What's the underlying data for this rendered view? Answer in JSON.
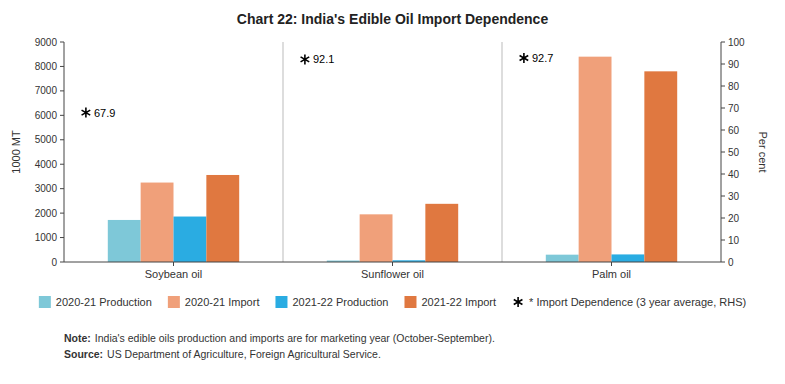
{
  "chart_data": {
    "type": "bar",
    "title": "Chart 22: India's Edible Oil Import Dependence",
    "categories": [
      "Soybean oil",
      "Sunflower oil",
      "Palm oil"
    ],
    "series": [
      {
        "name": "2020-21 Production",
        "color": "#7EC8D8",
        "values": [
          1720,
          60,
          300
        ]
      },
      {
        "name": "2020-21 Import",
        "color": "#F0A07A",
        "values": [
          3250,
          1950,
          8400
        ]
      },
      {
        "name": "2021-22 Production",
        "color": "#2AACE2",
        "values": [
          1860,
          70,
          310
        ]
      },
      {
        "name": "2021-22 Import",
        "color": "#E07840",
        "values": [
          3560,
          2380,
          7800
        ]
      },
      {
        "name": "* Import Dependence (3 year average, RHS)",
        "type": "scatter",
        "axis": "y2",
        "marker": "asterisk",
        "color": "#000000",
        "data_labels": true,
        "values": [
          67.9,
          92.1,
          92.7
        ]
      }
    ],
    "ylabel": "1000 MT",
    "y2label": "Per cent",
    "ylim": [
      0,
      9000
    ],
    "yticks": [
      0,
      1000,
      2000,
      3000,
      4000,
      5000,
      6000,
      7000,
      8000,
      9000
    ],
    "y2lim": [
      0,
      100
    ],
    "y2ticks": [
      0,
      10,
      20,
      30,
      40,
      50,
      60,
      70,
      80,
      90,
      100
    ],
    "grid": false,
    "legend": "bottom",
    "annotations": [
      {
        "heading": "Note:",
        "text": "India's edible oils production and imports are for marketing year (October-September)."
      },
      {
        "heading": "Source:",
        "text": "US Department of Agriculture, Foreign Agricultural Service."
      }
    ]
  }
}
